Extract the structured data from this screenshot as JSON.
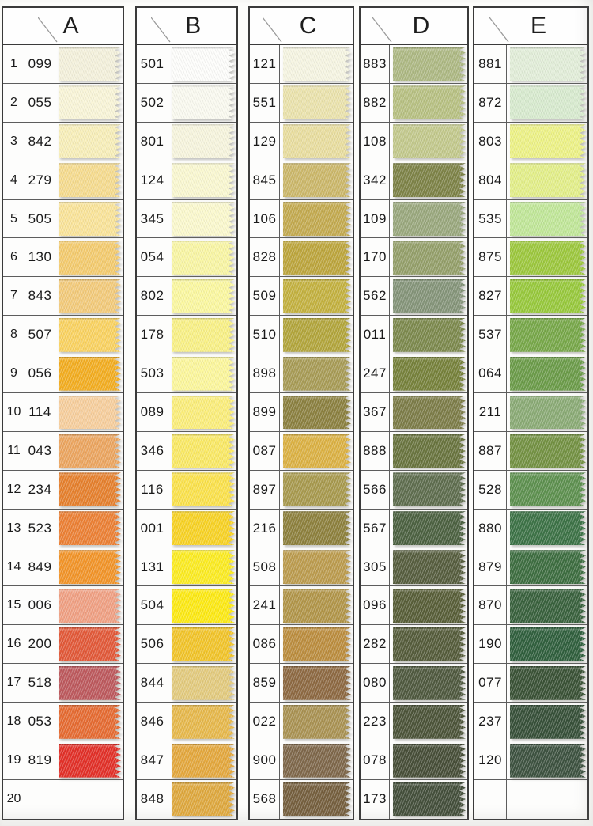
{
  "card": {
    "description": "fabric thread color sample card with pinked ribbon swatches",
    "border_color": "#3a3a3a",
    "grid_line_color": "#5d5d5d",
    "paper_color": "#fdfdfb"
  },
  "columns": [
    {
      "letter": "A",
      "has_row_numbers": true,
      "rows": [
        {
          "num": "1",
          "code": "099",
          "color": "#f4f1dc"
        },
        {
          "num": "2",
          "code": "055",
          "color": "#f9f5d8"
        },
        {
          "num": "3",
          "code": "842",
          "color": "#f8efba"
        },
        {
          "num": "4",
          "code": "279",
          "color": "#f6dc90"
        },
        {
          "num": "5",
          "code": "505",
          "color": "#fae49a"
        },
        {
          "num": "6",
          "code": "130",
          "color": "#f4cc70"
        },
        {
          "num": "7",
          "code": "843",
          "color": "#f3cb7c"
        },
        {
          "num": "8",
          "code": "507",
          "color": "#fad362"
        },
        {
          "num": "9",
          "code": "056",
          "color": "#f3ae22"
        },
        {
          "num": "10",
          "code": "114",
          "color": "#f7cf9e"
        },
        {
          "num": "11",
          "code": "043",
          "color": "#eca661"
        },
        {
          "num": "12",
          "code": "234",
          "color": "#e6812f"
        },
        {
          "num": "13",
          "code": "523",
          "color": "#ec8136"
        },
        {
          "num": "14",
          "code": "849",
          "color": "#f2952a"
        },
        {
          "num": "15",
          "code": "006",
          "color": "#f0a184"
        },
        {
          "num": "16",
          "code": "200",
          "color": "#e25a3a"
        },
        {
          "num": "17",
          "code": "518",
          "color": "#bd5a5e"
        },
        {
          "num": "18",
          "code": "053",
          "color": "#e66c33"
        },
        {
          "num": "19",
          "code": "819",
          "color": "#e23129"
        },
        {
          "num": "20",
          "code": "",
          "color": null
        }
      ]
    },
    {
      "letter": "B",
      "has_row_numbers": false,
      "rows": [
        {
          "code": "501",
          "color": "#fdfdfb"
        },
        {
          "code": "502",
          "color": "#fafaf0"
        },
        {
          "code": "801",
          "color": "#f7f5de"
        },
        {
          "code": "124",
          "color": "#faf8d1"
        },
        {
          "code": "345",
          "color": "#fbf9ce"
        },
        {
          "code": "054",
          "color": "#f9f6a5"
        },
        {
          "code": "802",
          "color": "#fbf8a1"
        },
        {
          "code": "178",
          "color": "#f9f187"
        },
        {
          "code": "503",
          "color": "#fcf79d"
        },
        {
          "code": "089",
          "color": "#fbee7c"
        },
        {
          "code": "346",
          "color": "#fae966"
        },
        {
          "code": "116",
          "color": "#fbe24d"
        },
        {
          "code": "001",
          "color": "#f8d326"
        },
        {
          "code": "131",
          "color": "#fcec23"
        },
        {
          "code": "504",
          "color": "#fdea15"
        },
        {
          "code": "506",
          "color": "#f2c52b"
        },
        {
          "code": "844",
          "color": "#e3cb7f"
        },
        {
          "code": "846",
          "color": "#e7b94d"
        },
        {
          "code": "847",
          "color": "#e4a83e"
        },
        {
          "code": "848",
          "color": "#dfa940"
        }
      ]
    },
    {
      "letter": "C",
      "has_row_numbers": false,
      "rows": [
        {
          "code": "121",
          "color": "#f6f5e2"
        },
        {
          "code": "551",
          "color": "#ebe3ad"
        },
        {
          "code": "129",
          "color": "#e9dea0"
        },
        {
          "code": "845",
          "color": "#ccb86b"
        },
        {
          "code": "106",
          "color": "#c4ab51"
        },
        {
          "code": "828",
          "color": "#bda63e"
        },
        {
          "code": "509",
          "color": "#c4b241"
        },
        {
          "code": "510",
          "color": "#b3a63d"
        },
        {
          "code": "898",
          "color": "#a89c57"
        },
        {
          "code": "899",
          "color": "#8c8141"
        },
        {
          "code": "087",
          "color": "#dcb245"
        },
        {
          "code": "897",
          "color": "#a89a4f"
        },
        {
          "code": "216",
          "color": "#8e813e"
        },
        {
          "code": "508",
          "color": "#bc9c4f"
        },
        {
          "code": "241",
          "color": "#b2964a"
        },
        {
          "code": "086",
          "color": "#bc8e40"
        },
        {
          "code": "859",
          "color": "#8e6a43"
        },
        {
          "code": "022",
          "color": "#aa9354"
        },
        {
          "code": "900",
          "color": "#7f684b"
        },
        {
          "code": "568",
          "color": "#76603f"
        }
      ]
    },
    {
      "letter": "D",
      "has_row_numbers": false,
      "rows": [
        {
          "code": "883",
          "color": "#aeb984"
        },
        {
          "code": "882",
          "color": "#b8c183"
        },
        {
          "code": "108",
          "color": "#c3c98d"
        },
        {
          "code": "342",
          "color": "#7e8348"
        },
        {
          "code": "109",
          "color": "#9aa87e"
        },
        {
          "code": "170",
          "color": "#95a06b"
        },
        {
          "code": "562",
          "color": "#85957a"
        },
        {
          "code": "011",
          "color": "#7d8a4e"
        },
        {
          "code": "247",
          "color": "#77823c"
        },
        {
          "code": "367",
          "color": "#7d7d49"
        },
        {
          "code": "888",
          "color": "#6a7540"
        },
        {
          "code": "566",
          "color": "#5f6e4f"
        },
        {
          "code": "567",
          "color": "#4d6242"
        },
        {
          "code": "305",
          "color": "#575e3f"
        },
        {
          "code": "096",
          "color": "#595f39"
        },
        {
          "code": "282",
          "color": "#565d3c"
        },
        {
          "code": "080",
          "color": "#505a40"
        },
        {
          "code": "223",
          "color": "#4d553a"
        },
        {
          "code": "078",
          "color": "#484f39"
        },
        {
          "code": "173",
          "color": "#45503c"
        }
      ]
    },
    {
      "letter": "E",
      "has_row_numbers": false,
      "rows": [
        {
          "code": "881",
          "color": "#e2eed9"
        },
        {
          "code": "872",
          "color": "#d8ebcf"
        },
        {
          "code": "803",
          "color": "#edf287"
        },
        {
          "code": "804",
          "color": "#e3ef8a"
        },
        {
          "code": "535",
          "color": "#c1e799"
        },
        {
          "code": "875",
          "color": "#9dc83e"
        },
        {
          "code": "827",
          "color": "#98c93d"
        },
        {
          "code": "537",
          "color": "#78a84a"
        },
        {
          "code": "064",
          "color": "#6c9c4a"
        },
        {
          "code": "211",
          "color": "#8bab76"
        },
        {
          "code": "887",
          "color": "#749244"
        },
        {
          "code": "528",
          "color": "#5e9150"
        },
        {
          "code": "880",
          "color": "#3d7347"
        },
        {
          "code": "879",
          "color": "#3e6e41"
        },
        {
          "code": "870",
          "color": "#3a623e"
        },
        {
          "code": "190",
          "color": "#31603e"
        },
        {
          "code": "077",
          "color": "#3b5337"
        },
        {
          "code": "237",
          "color": "#38513a"
        },
        {
          "code": "120",
          "color": "#3e5341"
        },
        {
          "code": "",
          "color": null
        }
      ]
    }
  ]
}
